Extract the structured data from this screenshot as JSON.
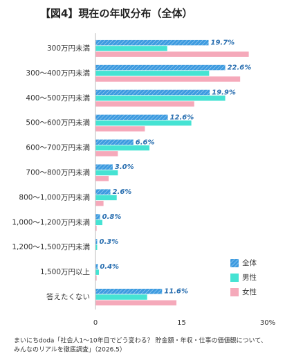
{
  "chart_data": {
    "type": "hbar",
    "title": "【図4】現在の年収分布（全体）",
    "categories": [
      "300万円未満",
      "300〜400万円未満",
      "400〜500万円未満",
      "500〜600万円未満",
      "600〜700万円未満",
      "700〜800万円未満",
      "800〜1,000万円未満",
      "1,000〜1,200万円未満",
      "1,200〜1,500万円未満",
      "1,500万円以上",
      "答えたくない"
    ],
    "series": [
      {
        "name": "全体",
        "color": "#3d9be0",
        "pattern": "hatch",
        "values": [
          19.7,
          22.6,
          19.9,
          12.6,
          6.6,
          3.0,
          2.6,
          0.8,
          0.3,
          0.4,
          11.6
        ],
        "value_labels": [
          "19.7%",
          "22.6%",
          "19.9%",
          "12.6%",
          "6.6%",
          "3.0%",
          "2.6%",
          "0.8%",
          "0.3%",
          "0.4%",
          "11.6%"
        ]
      },
      {
        "name": "男性",
        "color": "#45e3d3",
        "values": [
          12.5,
          19.8,
          22.6,
          16.7,
          9.4,
          3.9,
          3.7,
          1.2,
          0.3,
          0.6,
          9.0
        ]
      },
      {
        "name": "女性",
        "color": "#f5a9ba",
        "values": [
          26.7,
          25.2,
          17.2,
          8.6,
          3.9,
          2.3,
          1.4,
          0.2,
          0,
          0.2,
          14.1
        ]
      }
    ],
    "xlim": [
      0,
      30
    ],
    "xticks": [
      0,
      15,
      {
        "value": 30,
        "label": "30%"
      }
    ],
    "grid": false,
    "legend": "lower right",
    "source": [
      "まいにちdoda「社会人1～10年目でどう変わる？ 貯金額・年収・仕事の価値観について、",
      "みんなのリアルを徹底調査」（2026.5）"
    ]
  }
}
